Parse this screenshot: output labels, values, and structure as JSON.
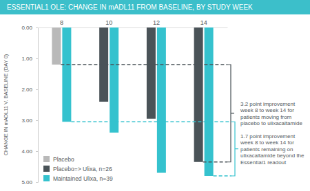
{
  "chart_data": {
    "type": "bar",
    "title": "ESSENTIAL1 OLE: CHANGE IN mADL11 FROM BASELINE, BY STUDY WEEK",
    "y_label": "CHANGE IN mADL11 V. BASELINE (DAY 0)",
    "categories": [
      "8",
      "10",
      "12",
      "14"
    ],
    "series": [
      {
        "name": "Placebo",
        "color": "#b9b9b9",
        "values": [
          1.2,
          null,
          null,
          null
        ]
      },
      {
        "name": "Placebo=> Ulixa, n=26",
        "color": "#4a5358",
        "values": [
          null,
          2.4,
          2.95,
          4.35
        ]
      },
      {
        "name": "Maintained Ulixa, n=39",
        "color": "#35c2ce",
        "values": [
          3.05,
          3.4,
          4.7,
          4.8
        ]
      }
    ],
    "ylim": [
      0,
      5
    ],
    "yticks": [
      {
        "value": 0,
        "label": "0.00"
      },
      {
        "value": 1,
        "label": "1.00"
      },
      {
        "value": 2,
        "label": "2.00"
      },
      {
        "value": 3,
        "label": "3.00"
      },
      {
        "value": 4,
        "label": "4.00"
      },
      {
        "value": 5,
        "label": "5.00"
      }
    ],
    "grid": false,
    "legend": "lower left",
    "annotations": [
      {
        "text": "3.2 point improvement week 8 to week 14 for patients moving from placebo to ulixacaltamide"
      },
      {
        "text": "1.7 point improvement week 8 to week 14 for patients remaining on ulixacaltamide beyond the Essential1 readout"
      }
    ]
  }
}
